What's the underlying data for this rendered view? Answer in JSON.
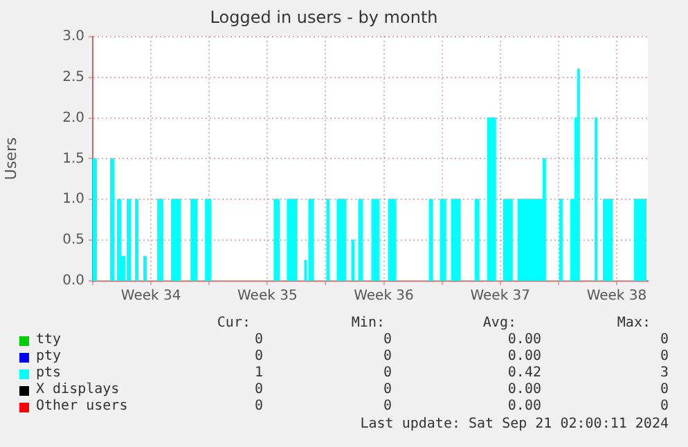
{
  "chart_data": {
    "type": "area",
    "title": "Logged in users - by month",
    "ylabel": "Users",
    "xlim": [
      "2024-08-19T00:00",
      "2024-09-21T09:00"
    ],
    "xticks": [
      {
        "value": "2024-08-19T00:00",
        "label": null
      },
      {
        "value": "2024-08-22T12:00",
        "label": "Week 34"
      },
      {
        "value": "2024-08-26T00:00",
        "label": null
      },
      {
        "value": "2024-08-29T12:00",
        "label": "Week 35"
      },
      {
        "value": "2024-09-02T00:00",
        "label": null
      },
      {
        "value": "2024-09-05T12:00",
        "label": "Week 36"
      },
      {
        "value": "2024-09-09T00:00",
        "label": null
      },
      {
        "value": "2024-09-12T12:00",
        "label": "Week 37"
      },
      {
        "value": "2024-09-16T00:00",
        "label": null
      },
      {
        "value": "2024-09-19T12:00",
        "label": "Week 38"
      }
    ],
    "ylim": [
      0,
      3
    ],
    "yticks": [
      {
        "value": 0,
        "label": "0.0"
      },
      {
        "value": 0.5,
        "label": "0.5"
      },
      {
        "value": 1,
        "label": "1.0"
      },
      {
        "value": 1.5,
        "label": "1.5"
      },
      {
        "value": 2,
        "label": "2.0"
      },
      {
        "value": 2.5,
        "label": "2.5"
      },
      {
        "value": 3,
        "label": "3.0"
      }
    ],
    "grid": true,
    "legend": "bottom",
    "series": [
      {
        "name": "tty",
        "color": "#00cc00"
      },
      {
        "name": "pty",
        "color": "#0000ff"
      },
      {
        "name": "pts",
        "color": "#00ffff",
        "x": [
          "2024-08-19T00:00",
          "2024-08-19T00:00",
          "2024-08-19T05:00",
          "2024-08-19T05:00",
          "2024-08-20T02:00",
          "2024-08-20T02:00",
          "2024-08-20T06:00",
          "2024-08-20T06:00",
          "2024-08-20T12:00",
          "2024-08-20T12:00",
          "2024-08-20T16:00",
          "2024-08-20T16:00",
          "2024-08-20T18:00",
          "2024-08-20T18:00",
          "2024-08-20T22:00",
          "2024-08-20T22:00",
          "2024-08-21T02:00",
          "2024-08-21T02:00",
          "2024-08-21T06:00",
          "2024-08-21T06:00",
          "2024-08-21T14:00",
          "2024-08-21T14:00",
          "2024-08-21T17:00",
          "2024-08-21T17:00",
          "2024-08-22T02:00",
          "2024-08-22T02:00",
          "2024-08-22T05:00",
          "2024-08-22T05:00",
          "2024-08-22T22:00",
          "2024-08-22T22:00",
          "2024-08-23T05:00",
          "2024-08-23T05:00",
          "2024-08-23T18:00",
          "2024-08-23T18:00",
          "2024-08-24T06:00",
          "2024-08-24T06:00",
          "2024-08-24T22:00",
          "2024-08-24T22:00",
          "2024-08-25T06:00",
          "2024-08-25T06:00",
          "2024-08-25T19:00",
          "2024-08-25T19:00",
          "2024-08-26T02:00",
          "2024-08-26T02:00",
          "2024-08-29T22:00",
          "2024-08-29T22:00",
          "2024-08-30T05:00",
          "2024-08-30T05:00",
          "2024-08-30T17:00",
          "2024-08-30T17:00",
          "2024-08-31T06:00",
          "2024-08-31T06:00",
          "2024-08-31T18:00",
          "2024-08-31T18:00",
          "2024-08-31T20:00",
          "2024-08-31T20:00",
          "2024-09-01T00:00",
          "2024-09-01T00:00",
          "2024-09-01T06:00",
          "2024-09-01T06:00",
          "2024-09-02T02:00",
          "2024-09-02T02:00",
          "2024-09-02T05:00",
          "2024-09-02T05:00",
          "2024-09-02T17:00",
          "2024-09-02T17:00",
          "2024-09-03T05:00",
          "2024-09-03T05:00",
          "2024-09-03T14:00",
          "2024-09-03T14:00",
          "2024-09-03T17:00",
          "2024-09-03T17:00",
          "2024-09-04T00:00",
          "2024-09-04T00:00",
          "2024-09-04T05:00",
          "2024-09-04T05:00",
          "2024-09-04T19:00",
          "2024-09-04T19:00",
          "2024-09-05T05:00",
          "2024-09-05T05:00",
          "2024-09-05T19:00",
          "2024-09-05T19:00",
          "2024-09-06T05:00",
          "2024-09-06T05:00",
          "2024-09-08T06:00",
          "2024-09-08T06:00",
          "2024-09-08T10:00",
          "2024-09-08T10:00",
          "2024-09-08T22:00",
          "2024-09-08T22:00",
          "2024-09-09T05:00",
          "2024-09-09T05:00",
          "2024-09-09T14:00",
          "2024-09-09T14:00",
          "2024-09-10T02:00",
          "2024-09-10T02:00",
          "2024-09-11T00:00",
          "2024-09-11T00:00",
          "2024-09-11T05:00",
          "2024-09-11T05:00",
          "2024-09-11T18:00",
          "2024-09-11T18:00",
          "2024-09-12T05:00",
          "2024-09-12T05:00",
          "2024-09-12T17:00",
          "2024-09-12T17:00",
          "2024-09-13T05:00",
          "2024-09-13T05:00",
          "2024-09-13T14:00",
          "2024-09-13T14:00",
          "2024-09-15T02:00",
          "2024-09-15T02:00",
          "2024-09-15T05:00",
          "2024-09-15T05:00",
          "2024-09-16T02:00",
          "2024-09-16T02:00",
          "2024-09-16T05:00",
          "2024-09-16T05:00",
          "2024-09-16T18:00",
          "2024-09-16T18:00",
          "2024-09-17T00:00",
          "2024-09-17T00:00",
          "2024-09-17T04:00",
          "2024-09-17T04:00",
          "2024-09-17T06:00",
          "2024-09-17T06:00",
          "2024-09-18T05:00",
          "2024-09-18T05:00",
          "2024-09-18T07:00",
          "2024-09-18T07:00",
          "2024-09-18T17:00",
          "2024-09-18T17:00",
          "2024-09-19T05:00",
          "2024-09-19T05:00",
          "2024-09-20T14:00",
          "2024-09-20T14:00",
          "2024-09-21T06:00",
          "2024-09-21T06:00"
        ],
        "values": [
          0,
          1.5,
          1.5,
          0,
          0,
          1.5,
          1.5,
          0,
          0,
          1,
          1,
          0,
          0,
          0.3,
          0.3,
          0,
          0,
          1,
          1,
          0,
          0,
          1,
          1,
          0,
          0,
          0.3,
          0.3,
          0,
          0,
          1,
          1,
          0,
          0,
          1,
          1,
          0,
          0,
          1,
          1,
          0,
          0,
          1,
          1,
          0,
          0,
          1,
          1,
          0,
          0,
          1,
          1,
          0,
          0,
          0.25,
          0.25,
          0,
          0,
          1,
          1,
          0,
          0,
          1,
          1,
          0,
          0,
          1,
          1,
          0,
          0,
          0.5,
          0.5,
          0,
          0,
          1,
          1,
          0,
          0,
          1,
          1,
          0,
          0,
          1,
          1,
          0,
          0,
          1,
          1,
          0,
          0,
          1,
          1,
          0,
          0,
          1,
          1,
          0,
          0,
          1,
          1,
          0,
          0,
          2,
          2,
          0,
          0,
          1,
          1,
          0,
          0,
          1,
          1,
          1.5,
          1.5,
          0,
          0,
          1,
          1,
          0,
          0,
          1,
          1,
          2,
          2,
          2.6,
          2.6,
          0,
          0,
          2,
          2,
          0,
          0,
          1,
          1,
          0,
          0,
          1,
          1,
          0
        ]
      },
      {
        "name": "X displays",
        "color": "#000000"
      },
      {
        "name": "Other users",
        "color": "#ff0000"
      }
    ],
    "annotations": [
      "Cur:",
      "Min:",
      "Avg:",
      "Max:",
      "0",
      "0",
      "0.00",
      "0",
      "0",
      "0",
      "0.00",
      "0",
      "1",
      "0",
      "0.42",
      "3",
      "0",
      "0",
      "0.00",
      "0",
      "0",
      "0",
      "0.00",
      "0",
      "Last update: Sat Sep 21 02:00:11 2024"
    ]
  }
}
